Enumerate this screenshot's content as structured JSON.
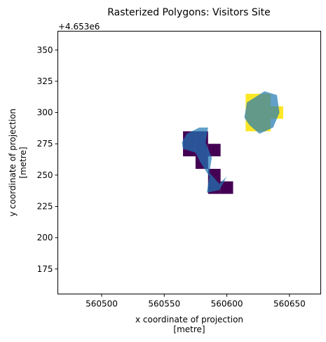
{
  "chart_data": {
    "type": "raster-map",
    "title": "Rasterized Polygons: Visitors Site",
    "xlabel": [
      "x coordinate of projection",
      "[metre]"
    ],
    "ylabel": [
      "y coordinate of projection",
      "[metre]"
    ],
    "y_offset_label": "+4.653e6",
    "x_offset": 4653000,
    "xlim": [
      560465,
      560675
    ],
    "ylim": [
      155,
      365
    ],
    "x_ticks": [
      560500,
      560550,
      560600,
      560650
    ],
    "y_ticks": [
      175,
      200,
      225,
      250,
      275,
      300,
      325,
      350
    ],
    "grid": false,
    "raster_cells": [
      {
        "x0": 560565,
        "x1": 560575,
        "y0": 265,
        "y1": 285,
        "color": "#440154"
      },
      {
        "x0": 560575,
        "x1": 560585,
        "y0": 255,
        "y1": 285,
        "color": "#440154"
      },
      {
        "x0": 560585,
        "x1": 560595,
        "y0": 265,
        "y1": 275,
        "color": "#440154"
      },
      {
        "x0": 560585,
        "x1": 560595,
        "y0": 235,
        "y1": 255,
        "color": "#440154"
      },
      {
        "x0": 560595,
        "x1": 560605,
        "y0": 235,
        "y1": 245,
        "color": "#440154"
      },
      {
        "x0": 560615,
        "x1": 560635,
        "y0": 285,
        "y1": 315,
        "color": "#fde725"
      },
      {
        "x0": 560635,
        "x1": 560645,
        "y0": 295,
        "y1": 305,
        "color": "#fde725"
      }
    ],
    "polygons": [
      {
        "color": "#1f77b4",
        "opacity": 0.7,
        "points": [
          [
            560568,
            283
          ],
          [
            560578,
            288
          ],
          [
            560585,
            288
          ],
          [
            560583,
            276
          ],
          [
            560588,
            264
          ],
          [
            560586,
            252
          ],
          [
            560594,
            243
          ],
          [
            560600,
            249
          ],
          [
            560594,
            238
          ],
          [
            560584,
            236
          ],
          [
            560586,
            249
          ],
          [
            560579,
            260
          ],
          [
            560575,
            268
          ],
          [
            560565,
            271
          ],
          [
            560564,
            276
          ]
        ]
      },
      {
        "color": "#1f77b4",
        "opacity": 0.7,
        "points": [
          [
            560616,
            308
          ],
          [
            560630,
            317
          ],
          [
            560640,
            314
          ],
          [
            560642,
            300
          ],
          [
            560637,
            288
          ],
          [
            560626,
            283
          ],
          [
            560618,
            290
          ],
          [
            560614,
            296
          ]
        ]
      }
    ]
  }
}
